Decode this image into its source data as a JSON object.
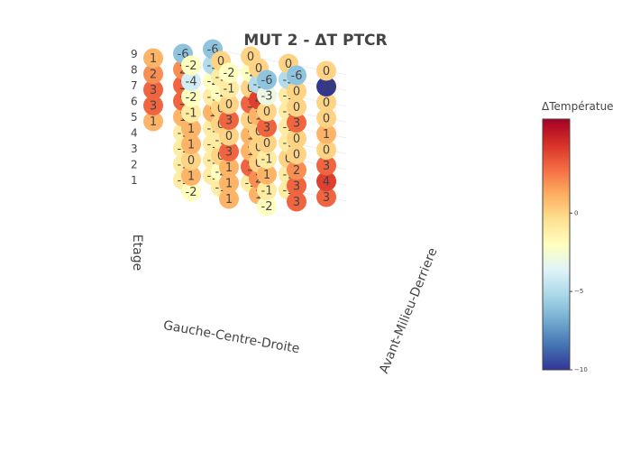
{
  "chart_data": {
    "type": "scatter3d",
    "title": "MUT 2 - ΔT PTCR",
    "xlabel": "Gauche-Centre-Droite",
    "ylabel": "Avant-Milieu-Derriere",
    "zlabel": "Etage",
    "z_ticks": [
      "1",
      "2",
      "3",
      "4",
      "5",
      "6",
      "7",
      "8",
      "9"
    ],
    "colorbar": {
      "title": "ΔTempératue",
      "range": [
        -10,
        6
      ],
      "ticks": [
        "0",
        "−5",
        "−10"
      ],
      "colorscale": [
        "#313695",
        "#4575b4",
        "#74add1",
        "#abd9e9",
        "#e0f3f8",
        "#ffffbf",
        "#fee090",
        "#fdae61",
        "#f46d43",
        "#d73027",
        "#a50026"
      ]
    },
    "grid": "on",
    "columns": [
      {
        "x": 0,
        "y": 0,
        "values": [
          null,
          null,
          null,
          null,
          1,
          3,
          3,
          2,
          1
        ]
      },
      {
        "x": 0,
        "y": 1,
        "values": [
          -1,
          -1,
          -1,
          -1,
          1,
          3,
          3,
          2,
          -6
        ]
      },
      {
        "x": 0,
        "y": 2,
        "values": [
          -1,
          -1,
          -1,
          -1,
          1,
          -1,
          -2,
          -5,
          -6
        ]
      },
      {
        "x": 1,
        "y": 0,
        "values": [
          -2,
          1,
          0,
          1,
          1,
          -1,
          -2,
          -4,
          -2
        ]
      },
      {
        "x": 1,
        "y": 1,
        "values": [
          -1,
          -2,
          0,
          -1,
          0,
          0,
          -2,
          -1,
          0
        ]
      },
      {
        "x": 1,
        "y": 2,
        "values": [
          -1,
          3,
          1,
          1,
          0,
          3,
          0,
          -2,
          0
        ]
      },
      {
        "x": 2,
        "y": 0,
        "values": [
          1,
          1,
          1,
          3,
          0,
          3,
          0,
          -1,
          -2
        ]
      },
      {
        "x": 2,
        "y": 1,
        "values": [
          1,
          2,
          0,
          0,
          0,
          1,
          4,
          -5,
          0
        ]
      },
      {
        "x": 2,
        "y": 2,
        "values": [
          -1,
          -1,
          0,
          -1,
          -1,
          -1,
          -1,
          -5,
          0
        ]
      },
      {
        "x": 3,
        "y": 0,
        "values": [
          -2,
          -1,
          1,
          -1,
          0,
          3,
          0,
          -3,
          -6
        ]
      },
      {
        "x": 3,
        "y": 1,
        "values": [
          3,
          3,
          2,
          0,
          0,
          3,
          0,
          0,
          -6
        ]
      },
      {
        "x": 3,
        "y": 2,
        "values": [
          3,
          4,
          3,
          0,
          1,
          0,
          0,
          -10,
          0
        ]
      }
    ]
  }
}
